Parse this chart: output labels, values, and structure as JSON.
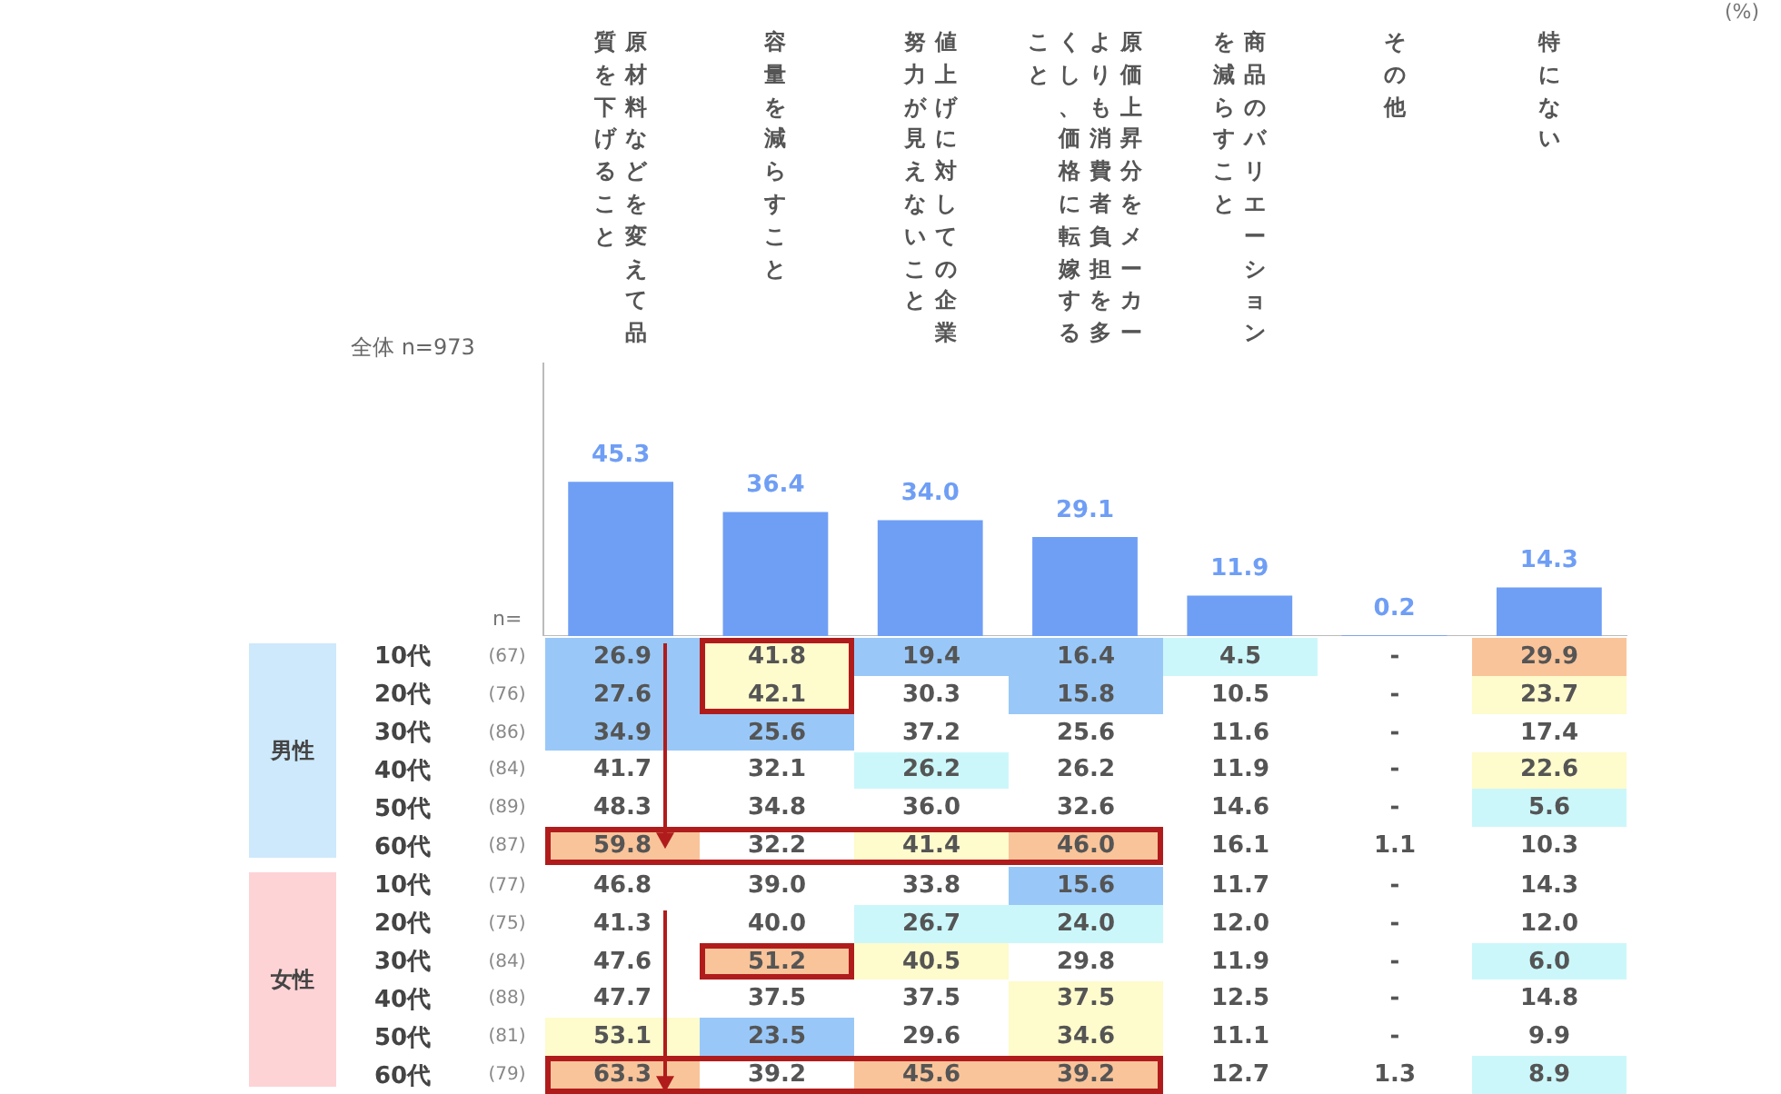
{
  "chart_data": [
    {
      "type": "bar",
      "title": "全体 n=973",
      "categories": [
        "原材料などを変えて品質を下げること",
        "容量を減らすこと",
        "値上げに対しての企業努力が見えないこと",
        "原価上昇分をメーカーよりも消費者負担を多くし、価格に転嫁すること",
        "商品のバリエーションを減らすこと",
        "その他",
        "特にない"
      ],
      "values": [
        45.3,
        36.4,
        34.0,
        29.1,
        11.9,
        0.2,
        14.3
      ],
      "color": "#6f9ef5",
      "value_labels": [
        "45.3",
        "36.4",
        "34.0",
        "29.1",
        "11.9",
        "0.2",
        "14.3"
      ],
      "ylim": [
        0,
        80
      ],
      "tick_labels": "x",
      "grid": false,
      "legend": false,
      "annotations": [
        "(%)",
        "n="
      ]
    },
    {
      "type": "heatmap",
      "title": "男性",
      "categories": [
        null,
        null,
        null,
        null,
        null,
        null,
        null
      ],
      "y_categories": [
        "10代",
        "20代",
        "30代",
        "40代",
        "50代",
        "60代"
      ],
      "y2_categories": [
        "(67)",
        "(76)",
        "(86)",
        "(84)",
        "(89)",
        "(87)"
      ],
      "cells": [
        [
          26.9,
          41.8,
          19.4,
          16.4,
          4.5,
          null,
          29.9
        ],
        [
          27.6,
          42.1,
          30.3,
          15.8,
          10.5,
          null,
          23.7
        ],
        [
          34.9,
          25.6,
          37.2,
          25.6,
          11.6,
          null,
          17.4
        ],
        [
          41.7,
          32.1,
          26.2,
          26.2,
          11.9,
          null,
          22.6
        ],
        [
          48.3,
          34.8,
          36.0,
          32.6,
          14.6,
          null,
          5.6
        ],
        [
          59.8,
          32.2,
          41.4,
          46.0,
          16.1,
          1.1,
          10.3
        ]
      ],
      "cell_labels": [
        [
          "26.9",
          "41.8",
          "19.4",
          "16.4",
          "4.5",
          "-",
          "29.9"
        ],
        [
          "27.6",
          "42.1",
          "30.3",
          "15.8",
          "10.5",
          "-",
          "23.7"
        ],
        [
          "34.9",
          "25.6",
          "37.2",
          "25.6",
          "11.6",
          "-",
          "17.4"
        ],
        [
          "41.7",
          "32.1",
          "26.2",
          "26.2",
          "11.9",
          "-",
          "22.6"
        ],
        [
          "48.3",
          "34.8",
          "36.0",
          "32.6",
          "14.6",
          "-",
          "5.6"
        ],
        [
          "59.8",
          "32.2",
          "41.4",
          "46.0",
          "16.1",
          "1.1",
          "10.3"
        ]
      ],
      "colors": [
        [
          "#99c8f8",
          "#fefbcc",
          "#99c8f8",
          "#99c8f8",
          "#ccf7fa",
          null,
          "#f9c49a"
        ],
        [
          "#99c8f8",
          "#fefbcc",
          null,
          "#99c8f8",
          null,
          null,
          "#fefbcc"
        ],
        [
          "#99c8f8",
          "#99c8f8",
          null,
          null,
          null,
          null,
          null
        ],
        [
          null,
          null,
          "#ccf7fa",
          null,
          null,
          null,
          "#fefbcc"
        ],
        [
          null,
          null,
          null,
          null,
          null,
          null,
          "#ccf7fa"
        ],
        [
          "#f9c49a",
          null,
          "#fefbcc",
          "#f9c49a",
          null,
          null,
          null
        ]
      ],
      "data_labels": true,
      "tick_labels": "y"
    },
    {
      "type": "heatmap",
      "title": "女性",
      "categories": [
        null,
        null,
        null,
        null,
        null,
        null,
        null
      ],
      "y_categories": [
        "10代",
        "20代",
        "30代",
        "40代",
        "50代",
        "60代"
      ],
      "y2_categories": [
        "(77)",
        "(75)",
        "(84)",
        "(88)",
        "(81)",
        "(79)"
      ],
      "cells": [
        [
          46.8,
          39.0,
          33.8,
          15.6,
          11.7,
          null,
          14.3
        ],
        [
          41.3,
          40.0,
          26.7,
          24.0,
          12.0,
          null,
          12.0
        ],
        [
          47.6,
          51.2,
          40.5,
          29.8,
          11.9,
          null,
          6.0
        ],
        [
          47.7,
          37.5,
          37.5,
          37.5,
          12.5,
          null,
          14.8
        ],
        [
          53.1,
          23.5,
          29.6,
          34.6,
          11.1,
          null,
          9.9
        ],
        [
          63.3,
          39.2,
          45.6,
          39.2,
          12.7,
          1.3,
          8.9
        ]
      ],
      "cell_labels": [
        [
          "46.8",
          "39.0",
          "33.8",
          "15.6",
          "11.7",
          "-",
          "14.3"
        ],
        [
          "41.3",
          "40.0",
          "26.7",
          "24.0",
          "12.0",
          "-",
          "12.0"
        ],
        [
          "47.6",
          "51.2",
          "40.5",
          "29.8",
          "11.9",
          "-",
          "6.0"
        ],
        [
          "47.7",
          "37.5",
          "37.5",
          "37.5",
          "12.5",
          "-",
          "14.8"
        ],
        [
          "53.1",
          "23.5",
          "29.6",
          "34.6",
          "11.1",
          "-",
          "9.9"
        ],
        [
          "63.3",
          "39.2",
          "45.6",
          "39.2",
          "12.7",
          "1.3",
          "8.9"
        ]
      ],
      "colors": [
        [
          null,
          null,
          null,
          "#99c8f8",
          null,
          null,
          null
        ],
        [
          null,
          null,
          "#ccf7fa",
          "#ccf7fa",
          null,
          null,
          null
        ],
        [
          null,
          "#f9c49a",
          "#fefbcc",
          null,
          null,
          null,
          "#ccf7fa"
        ],
        [
          null,
          null,
          null,
          "#fefbcc",
          null,
          null,
          null
        ],
        [
          "#fefbcc",
          "#99c8f8",
          null,
          "#fefbcc",
          null,
          null,
          null
        ],
        [
          "#f9c49a",
          null,
          "#f9c49a",
          "#f9c49a",
          null,
          null,
          "#ccf7fa"
        ]
      ],
      "data_labels": true,
      "tick_labels": "y"
    }
  ]
}
